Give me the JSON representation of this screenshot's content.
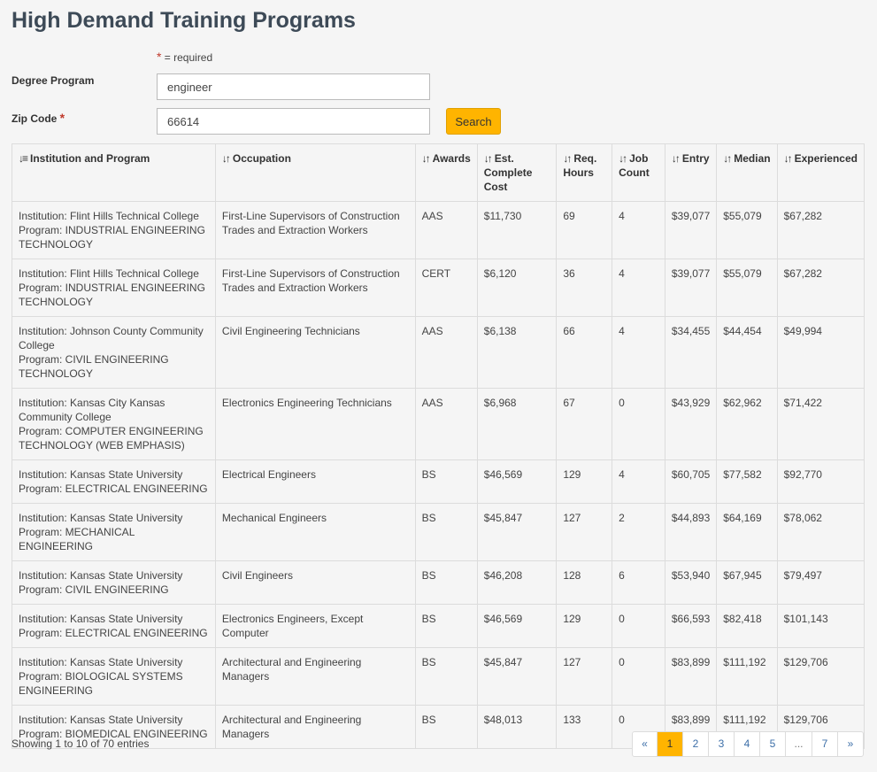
{
  "page": {
    "title": "High Demand Training Programs"
  },
  "form": {
    "required_star": "*",
    "required_note": " = required",
    "degree_label": "Degree Program",
    "degree_value": "engineer",
    "zip_label": "Zip Code",
    "zip_value": "66614",
    "search_label": "Search"
  },
  "table": {
    "columns": [
      "Institution and Program",
      "Occupation",
      "Awards",
      "Est. Complete Cost",
      "Req. Hours",
      "Job Count",
      "Entry",
      "Median",
      "Experienced"
    ],
    "rows": [
      {
        "institution": "Institution: Flint Hills Technical College",
        "program": "Program: INDUSTRIAL ENGINEERING TECHNOLOGY",
        "occupation": "First-Line Supervisors of Construction Trades and Extraction Workers",
        "awards": "AAS",
        "cost": "$11,730",
        "hours": "69",
        "jobs": "4",
        "entry": "$39,077",
        "median": "$55,079",
        "experienced": "$67,282"
      },
      {
        "institution": "Institution: Flint Hills Technical College",
        "program": "Program: INDUSTRIAL ENGINEERING TECHNOLOGY",
        "occupation": "First-Line Supervisors of Construction Trades and Extraction Workers",
        "awards": "CERT",
        "cost": "$6,120",
        "hours": "36",
        "jobs": "4",
        "entry": "$39,077",
        "median": "$55,079",
        "experienced": "$67,282"
      },
      {
        "institution": "Institution: Johnson County Community College",
        "program": "Program: CIVIL ENGINEERING TECHNOLOGY",
        "occupation": "Civil Engineering Technicians",
        "awards": "AAS",
        "cost": "$6,138",
        "hours": "66",
        "jobs": "4",
        "entry": "$34,455",
        "median": "$44,454",
        "experienced": "$49,994"
      },
      {
        "institution": "Institution: Kansas City Kansas Community College",
        "program": "Program: COMPUTER ENGINEERING TECHNOLOGY (WEB EMPHASIS)",
        "occupation": "Electronics Engineering Technicians",
        "awards": "AAS",
        "cost": "$6,968",
        "hours": "67",
        "jobs": "0",
        "entry": "$43,929",
        "median": "$62,962",
        "experienced": "$71,422"
      },
      {
        "institution": "Institution: Kansas State University",
        "program": "Program: ELECTRICAL ENGINEERING",
        "occupation": "Electrical Engineers",
        "awards": "BS",
        "cost": "$46,569",
        "hours": "129",
        "jobs": "4",
        "entry": "$60,705",
        "median": "$77,582",
        "experienced": "$92,770"
      },
      {
        "institution": "Institution: Kansas State University",
        "program": "Program: MECHANICAL ENGINEERING",
        "occupation": "Mechanical Engineers",
        "awards": "BS",
        "cost": "$45,847",
        "hours": "127",
        "jobs": "2",
        "entry": "$44,893",
        "median": "$64,169",
        "experienced": "$78,062"
      },
      {
        "institution": "Institution: Kansas State University",
        "program": "Program: CIVIL ENGINEERING",
        "occupation": "Civil Engineers",
        "awards": "BS",
        "cost": "$46,208",
        "hours": "128",
        "jobs": "6",
        "entry": "$53,940",
        "median": "$67,945",
        "experienced": "$79,497"
      },
      {
        "institution": "Institution: Kansas State University",
        "program": "Program: ELECTRICAL ENGINEERING",
        "occupation": "Electronics Engineers, Except Computer",
        "awards": "BS",
        "cost": "$46,569",
        "hours": "129",
        "jobs": "0",
        "entry": "$66,593",
        "median": "$82,418",
        "experienced": "$101,143"
      },
      {
        "institution": "Institution: Kansas State University",
        "program": "Program: BIOLOGICAL SYSTEMS ENGINEERING",
        "occupation": "Architectural and Engineering Managers",
        "awards": "BS",
        "cost": "$45,847",
        "hours": "127",
        "jobs": "0",
        "entry": "$83,899",
        "median": "$111,192",
        "experienced": "$129,706"
      },
      {
        "institution": "Institution: Kansas State University",
        "program": "Program: BIOMEDICAL ENGINEERING",
        "occupation": "Architectural and Engineering Managers",
        "awards": "BS",
        "cost": "$48,013",
        "hours": "133",
        "jobs": "0",
        "entry": "$83,899",
        "median": "$111,192",
        "experienced": "$129,706"
      }
    ]
  },
  "footer": {
    "showing": "Showing 1 to 10 of 70 entries",
    "pages": [
      "«",
      "1",
      "2",
      "3",
      "4",
      "5",
      "...",
      "7",
      "»"
    ],
    "active_page": "1"
  },
  "icons": {
    "sort_asc": "sort-ascending-icon",
    "sort": "sort-icon"
  }
}
